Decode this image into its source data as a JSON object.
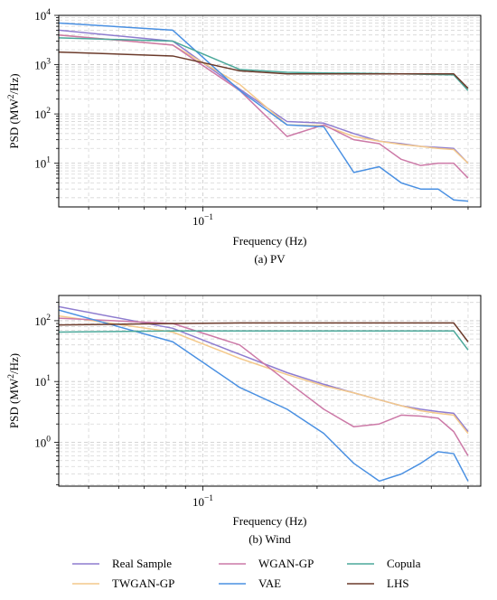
{
  "chart_data": [
    {
      "type": "line",
      "caption": "(a) PV",
      "xlabel": "Frequency (Hz)",
      "ylabel_main": "PSD (MW",
      "ylabel_sup": "2",
      "ylabel_tail": "/Hz)",
      "x_scale": "log",
      "y_scale": "log",
      "xlim": [
        0.0417,
        0.54
      ],
      "ylim": [
        1.3,
        10000
      ],
      "x_major_ticks": [
        {
          "value": 0.1,
          "base": "10",
          "exp": "−1"
        }
      ],
      "y_major_ticks": [
        {
          "value": 10,
          "base": "10",
          "exp": "1"
        },
        {
          "value": 100,
          "base": "10",
          "exp": "2"
        },
        {
          "value": 1000,
          "base": "10",
          "exp": "3"
        },
        {
          "value": 10000,
          "base": "10",
          "exp": "4"
        }
      ],
      "grid": true,
      "x": [
        0.0417,
        0.0833,
        0.125,
        0.1667,
        0.2083,
        0.25,
        0.2917,
        0.3333,
        0.375,
        0.4167,
        0.4583,
        0.5
      ],
      "series": [
        {
          "name": "Real Sample",
          "color": "#8e7ccf",
          "values": [
            5000,
            3000,
            320,
            70,
            65,
            40,
            28,
            25,
            22,
            21,
            20,
            10
          ]
        },
        {
          "name": "TWGAN-GP",
          "color": "#f4c98b",
          "values": [
            4000,
            2500,
            400,
            60,
            58,
            35,
            28,
            24,
            22,
            20,
            19,
            10
          ]
        },
        {
          "name": "WGAN-GP",
          "color": "#cc79a7",
          "values": [
            4000,
            2500,
            300,
            35,
            60,
            30,
            25,
            12,
            9,
            10,
            10,
            5
          ]
        },
        {
          "name": "VAE",
          "color": "#4a90e2",
          "values": [
            7000,
            5000,
            300,
            60,
            55,
            6.5,
            8.5,
            4,
            3,
            3,
            1.8,
            1.7
          ]
        },
        {
          "name": "Copula",
          "color": "#4ba89a",
          "values": [
            3500,
            3000,
            800,
            700,
            680,
            670,
            660,
            650,
            640,
            630,
            620,
            300
          ]
        },
        {
          "name": "LHS",
          "color": "#6b3a2a",
          "values": [
            1800,
            1500,
            750,
            650,
            650,
            650,
            650,
            650,
            650,
            650,
            650,
            330
          ]
        }
      ]
    },
    {
      "type": "line",
      "caption": "(b) Wind",
      "xlabel": "Frequency (Hz)",
      "ylabel_main": "PSD (MW",
      "ylabel_sup": "2",
      "ylabel_tail": "/Hz)",
      "x_scale": "log",
      "y_scale": "log",
      "xlim": [
        0.0417,
        0.54
      ],
      "ylim": [
        0.19,
        260
      ],
      "x_major_ticks": [
        {
          "value": 0.1,
          "base": "10",
          "exp": "−1"
        }
      ],
      "y_major_ticks": [
        {
          "value": 1,
          "base": "10",
          "exp": "0"
        },
        {
          "value": 10,
          "base": "10",
          "exp": "1"
        },
        {
          "value": 100,
          "base": "10",
          "exp": "2"
        }
      ],
      "grid": true,
      "x": [
        0.0417,
        0.0833,
        0.125,
        0.1667,
        0.2083,
        0.25,
        0.2917,
        0.3333,
        0.375,
        0.4167,
        0.4583,
        0.5
      ],
      "series": [
        {
          "name": "Real Sample",
          "color": "#8e7ccf",
          "values": [
            170,
            75,
            28,
            14,
            9,
            6.5,
            5,
            4,
            3.5,
            3.2,
            3,
            1.5
          ]
        },
        {
          "name": "TWGAN-GP",
          "color": "#f4c98b",
          "values": [
            120,
            65,
            24,
            13,
            8.5,
            6.5,
            5,
            4,
            3.3,
            3,
            2.8,
            1.4
          ]
        },
        {
          "name": "WGAN-GP",
          "color": "#cc79a7",
          "values": [
            110,
            90,
            40,
            10,
            3.5,
            1.8,
            2,
            2.8,
            2.7,
            2.5,
            1.5,
            0.6
          ]
        },
        {
          "name": "VAE",
          "color": "#4a90e2",
          "values": [
            150,
            45,
            8,
            3.5,
            1.4,
            0.45,
            0.23,
            0.3,
            0.45,
            0.7,
            0.65,
            0.23
          ]
        },
        {
          "name": "Copula",
          "color": "#4ba89a",
          "values": [
            65,
            68,
            68,
            68,
            68,
            68,
            68,
            68,
            68,
            68,
            68,
            33
          ]
        },
        {
          "name": "LHS",
          "color": "#6b3a2a",
          "values": [
            85,
            90,
            92,
            92,
            92,
            92,
            92,
            92,
            92,
            92,
            92,
            45
          ]
        }
      ]
    }
  ],
  "legend": {
    "placement": "bottom",
    "entries": [
      {
        "name": "Real Sample",
        "color": "#8e7ccf"
      },
      {
        "name": "WGAN-GP",
        "color": "#cc79a7"
      },
      {
        "name": "Copula",
        "color": "#4ba89a"
      },
      {
        "name": "TWGAN-GP",
        "color": "#f4c98b"
      },
      {
        "name": "VAE",
        "color": "#4a90e2"
      },
      {
        "name": "LHS",
        "color": "#6b3a2a"
      }
    ]
  }
}
